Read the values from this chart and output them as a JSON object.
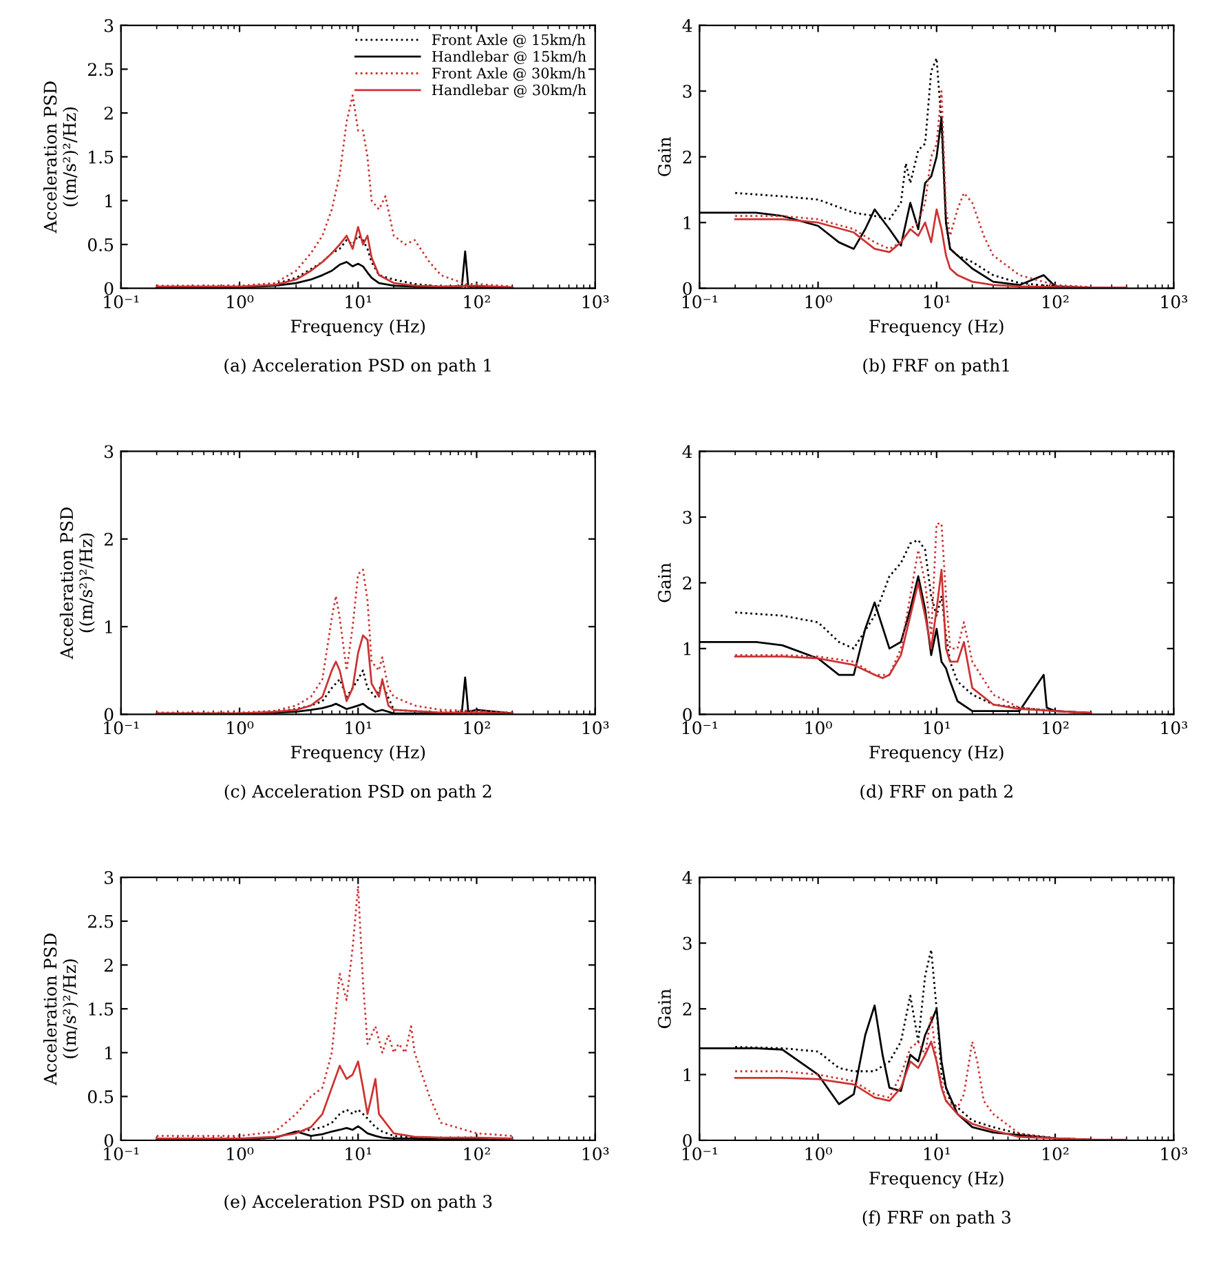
{
  "chart_data": [
    {
      "type": "line",
      "title": "(a) Acceleration PSD on path 1",
      "xlabel": "Frequency (Hz)",
      "ylabel": "Acceleration PSD\n((m/s²)²/Hz)",
      "log": "x",
      "xlim": [
        0.1,
        1000
      ],
      "xticks": [
        {
          "value": 0.1,
          "label": "10⁻¹"
        },
        {
          "value": 1,
          "label": "10⁰"
        },
        {
          "value": 10,
          "label": "10¹"
        },
        {
          "value": 100,
          "label": "10²"
        },
        {
          "value": 1000,
          "label": "10³"
        }
      ],
      "ylim": [
        0,
        3
      ],
      "yticks": [
        0,
        0.5,
        1,
        1.5,
        2,
        2.5,
        3
      ],
      "grid": false,
      "legend": "top right",
      "series": [
        {
          "name": "Front Axle @ 15km/h",
          "color": "#000000",
          "line_style": "dotted",
          "x": [
            0.2,
            1,
            2,
            3,
            4,
            5,
            6,
            7,
            8,
            9,
            10,
            11,
            12,
            13,
            15,
            20,
            30,
            50,
            80,
            100,
            200
          ],
          "values": [
            0.02,
            0.02,
            0.05,
            0.12,
            0.22,
            0.3,
            0.4,
            0.45,
            0.55,
            0.5,
            0.6,
            0.55,
            0.45,
            0.3,
            0.15,
            0.1,
            0.05,
            0.02,
            0.03,
            0.02,
            0.01
          ]
        },
        {
          "name": "Handlebar @ 15km/h",
          "color": "#000000",
          "line_style": "solid",
          "x": [
            0.2,
            1,
            2,
            3,
            4,
            5,
            6,
            7,
            8,
            9,
            10,
            11,
            12,
            13,
            15,
            20,
            30,
            50,
            75,
            80,
            85,
            100,
            200
          ],
          "values": [
            0.01,
            0.01,
            0.03,
            0.06,
            0.1,
            0.15,
            0.2,
            0.27,
            0.3,
            0.25,
            0.28,
            0.25,
            0.18,
            0.12,
            0.06,
            0.03,
            0.02,
            0.01,
            0.02,
            0.42,
            0.02,
            0.02,
            0.01
          ]
        },
        {
          "name": "Front Axle @ 30km/h",
          "color": "#cc3333",
          "line_style": "dotted",
          "x": [
            0.2,
            1,
            2,
            3,
            4,
            5,
            6,
            7,
            8,
            9,
            10,
            11,
            12,
            13,
            15,
            17,
            20,
            25,
            30,
            40,
            50,
            80,
            100,
            200
          ],
          "values": [
            0.03,
            0.03,
            0.06,
            0.2,
            0.4,
            0.6,
            0.9,
            1.3,
            1.9,
            2.2,
            1.8,
            1.8,
            1.5,
            1.0,
            0.9,
            1.05,
            0.6,
            0.5,
            0.55,
            0.3,
            0.15,
            0.05,
            0.05,
            0.02
          ]
        },
        {
          "name": "Handlebar @ 30km/h",
          "color": "#cc3333",
          "line_style": "solid",
          "x": [
            0.2,
            1,
            2,
            3,
            4,
            5,
            6,
            7,
            8,
            9,
            10,
            11,
            12,
            13,
            15,
            20,
            30,
            50,
            100,
            200
          ],
          "values": [
            0.02,
            0.02,
            0.04,
            0.1,
            0.2,
            0.3,
            0.4,
            0.5,
            0.6,
            0.45,
            0.7,
            0.5,
            0.6,
            0.35,
            0.15,
            0.06,
            0.03,
            0.02,
            0.03,
            0.01
          ]
        }
      ]
    },
    {
      "type": "line",
      "title": "(b) FRF on path1",
      "xlabel": "Frequency (Hz)",
      "ylabel": "Gain",
      "log": "x",
      "xlim": [
        0.1,
        1000
      ],
      "xticks": [
        {
          "value": 0.1,
          "label": "10⁻¹"
        },
        {
          "value": 1,
          "label": "10⁰"
        },
        {
          "value": 10,
          "label": "10¹"
        },
        {
          "value": 100,
          "label": "10²"
        },
        {
          "value": 1000,
          "label": "10³"
        }
      ],
      "ylim": [
        0,
        4
      ],
      "yticks": [
        0,
        1,
        2,
        3,
        4
      ],
      "grid": false,
      "series": [
        {
          "color": "#000000",
          "line_style": "dotted",
          "x": [
            0.2,
            0.5,
            1,
            2,
            3,
            4,
            5,
            5.5,
            6,
            7,
            8,
            9,
            10,
            11,
            12,
            13,
            15,
            20,
            30,
            50,
            100,
            200
          ],
          "values": [
            1.45,
            1.4,
            1.35,
            1.15,
            1.1,
            1.05,
            1.3,
            1.9,
            1.6,
            2.1,
            2.2,
            3.3,
            3.5,
            2.5,
            1.0,
            0.6,
            0.5,
            0.4,
            0.2,
            0.08,
            0.03,
            0.01
          ]
        },
        {
          "color": "#000000",
          "line_style": "solid",
          "x": [
            0.1,
            0.3,
            0.5,
            1,
            1.5,
            2,
            2.5,
            3,
            4,
            5,
            6,
            7,
            8,
            9,
            10,
            11,
            12,
            13,
            15,
            20,
            30,
            50,
            80,
            100,
            200
          ],
          "values": [
            1.15,
            1.15,
            1.1,
            0.95,
            0.7,
            0.6,
            0.9,
            1.2,
            0.9,
            0.65,
            1.3,
            0.9,
            1.6,
            1.7,
            2.0,
            2.6,
            1.0,
            0.6,
            0.5,
            0.3,
            0.1,
            0.05,
            0.2,
            0.03,
            0.01
          ]
        },
        {
          "color": "#cc3333",
          "line_style": "dotted",
          "x": [
            0.2,
            0.5,
            1,
            2,
            3,
            4,
            5,
            6,
            7,
            8,
            9,
            10,
            11,
            12,
            13,
            15,
            17,
            20,
            25,
            30,
            50,
            100,
            200
          ],
          "values": [
            1.1,
            1.1,
            1.05,
            0.9,
            0.7,
            0.6,
            0.7,
            0.9,
            1.0,
            1.3,
            2.0,
            2.2,
            3.0,
            1.2,
            0.8,
            1.2,
            1.45,
            1.3,
            0.8,
            0.5,
            0.2,
            0.05,
            0.02
          ]
        },
        {
          "color": "#cc3333",
          "line_style": "solid",
          "x": [
            0.2,
            0.5,
            1,
            2,
            3,
            4,
            5,
            6,
            7,
            8,
            9,
            10,
            11,
            12,
            13,
            15,
            20,
            30,
            50,
            100,
            200,
            400
          ],
          "values": [
            1.05,
            1.05,
            1.0,
            0.85,
            0.6,
            0.55,
            0.7,
            0.9,
            0.8,
            1.0,
            0.7,
            1.2,
            0.9,
            0.5,
            0.3,
            0.2,
            0.1,
            0.05,
            0.03,
            0.02,
            0.01,
            0.01
          ]
        }
      ]
    },
    {
      "type": "line",
      "title": "(c) Acceleration PSD on path 2",
      "xlabel": "Frequency (Hz)",
      "ylabel": "Acceleration PSD\n((m/s²)²/Hz)",
      "log": "x",
      "xlim": [
        0.1,
        1000
      ],
      "xticks": [
        {
          "value": 0.1,
          "label": "10⁻¹"
        },
        {
          "value": 1,
          "label": "10⁰"
        },
        {
          "value": 10,
          "label": "10¹"
        },
        {
          "value": 100,
          "label": "10²"
        },
        {
          "value": 1000,
          "label": "10³"
        }
      ],
      "ylim": [
        0,
        3
      ],
      "yticks": [
        0,
        1,
        2,
        3
      ],
      "grid": false,
      "series": [
        {
          "color": "#000000",
          "line_style": "dotted",
          "x": [
            0.2,
            1,
            2,
            3,
            4,
            5,
            6,
            7,
            8,
            9,
            10,
            11,
            12,
            14,
            16,
            20,
            50,
            100,
            200
          ],
          "values": [
            0.01,
            0.01,
            0.03,
            0.06,
            0.1,
            0.15,
            0.3,
            0.4,
            0.2,
            0.3,
            0.4,
            0.5,
            0.3,
            0.2,
            0.35,
            0.05,
            0.02,
            0.03,
            0.01
          ]
        },
        {
          "color": "#000000",
          "line_style": "solid",
          "x": [
            0.2,
            1,
            2,
            3,
            4,
            5,
            6,
            6.5,
            7,
            8,
            9,
            10,
            11,
            12,
            14,
            16,
            20,
            50,
            75,
            80,
            85,
            100,
            200
          ],
          "values": [
            0.01,
            0.01,
            0.02,
            0.03,
            0.05,
            0.07,
            0.1,
            0.12,
            0.1,
            0.06,
            0.08,
            0.1,
            0.12,
            0.08,
            0.03,
            0.05,
            0.01,
            0.01,
            0.02,
            0.42,
            0.03,
            0.05,
            0.01
          ]
        },
        {
          "color": "#cc3333",
          "line_style": "dotted",
          "x": [
            0.2,
            1,
            2,
            3,
            4,
            5,
            6,
            6.5,
            7,
            8,
            9,
            10,
            11,
            12,
            13,
            15,
            16,
            18,
            20,
            30,
            50,
            100,
            200
          ],
          "values": [
            0.02,
            0.02,
            0.04,
            0.1,
            0.2,
            0.4,
            1.1,
            1.35,
            1.1,
            0.5,
            1.0,
            1.6,
            1.65,
            1.3,
            0.6,
            0.5,
            0.65,
            0.3,
            0.2,
            0.1,
            0.05,
            0.04,
            0.02
          ]
        },
        {
          "color": "#cc3333",
          "line_style": "solid",
          "x": [
            0.2,
            1,
            2,
            3,
            4,
            5,
            6,
            6.5,
            7,
            8,
            9,
            10,
            11,
            12,
            13,
            15,
            16,
            18,
            20,
            50,
            100,
            200
          ],
          "values": [
            0.01,
            0.01,
            0.03,
            0.05,
            0.1,
            0.2,
            0.5,
            0.6,
            0.5,
            0.15,
            0.3,
            0.7,
            0.9,
            0.85,
            0.35,
            0.2,
            0.4,
            0.1,
            0.05,
            0.02,
            0.02,
            0.01
          ]
        }
      ]
    },
    {
      "type": "line",
      "title": "(d) FRF on path 2",
      "xlabel": "Frequency (Hz)",
      "ylabel": "Gain",
      "log": "x",
      "xlim": [
        0.1,
        1000
      ],
      "xticks": [
        {
          "value": 0.1,
          "label": "10⁻¹"
        },
        {
          "value": 1,
          "label": "10⁰"
        },
        {
          "value": 10,
          "label": "10¹"
        },
        {
          "value": 100,
          "label": "10²"
        },
        {
          "value": 1000,
          "label": "10³"
        }
      ],
      "ylim": [
        0,
        4
      ],
      "yticks": [
        0,
        1,
        2,
        3,
        4
      ],
      "grid": false,
      "series": [
        {
          "color": "#000000",
          "line_style": "dotted",
          "x": [
            0.2,
            0.5,
            1,
            1.5,
            2,
            3,
            4,
            5,
            6,
            7,
            8,
            9,
            10,
            11,
            12,
            13,
            15,
            20,
            30,
            50,
            100,
            200
          ],
          "values": [
            1.55,
            1.5,
            1.4,
            1.1,
            1.0,
            1.5,
            2.1,
            2.3,
            2.6,
            2.65,
            2.5,
            1.8,
            1.5,
            1.8,
            1.2,
            0.8,
            0.5,
            0.3,
            0.15,
            0.1,
            0.05,
            0.02
          ]
        },
        {
          "color": "#000000",
          "line_style": "solid",
          "x": [
            0.1,
            0.3,
            0.5,
            1,
            1.5,
            2,
            2.5,
            3,
            4,
            5,
            6,
            7,
            8,
            9,
            10,
            11,
            12,
            13,
            15,
            20,
            50,
            80,
            85,
            100,
            200
          ],
          "values": [
            1.1,
            1.1,
            1.05,
            0.85,
            0.6,
            0.6,
            1.3,
            1.7,
            1.0,
            1.1,
            1.6,
            2.1,
            1.6,
            0.9,
            1.3,
            0.8,
            0.7,
            0.5,
            0.2,
            0.05,
            0.05,
            0.6,
            0.1,
            0.05,
            0.02
          ]
        },
        {
          "color": "#cc3333",
          "line_style": "dotted",
          "x": [
            0.2,
            0.5,
            1,
            2,
            3,
            4,
            5,
            6,
            7,
            8,
            9,
            10,
            11,
            12,
            13,
            15,
            17,
            20,
            30,
            50,
            100,
            200
          ],
          "values": [
            0.9,
            0.9,
            0.88,
            0.8,
            0.6,
            0.6,
            1.0,
            1.8,
            2.5,
            2.0,
            1.2,
            2.9,
            2.9,
            1.8,
            1.0,
            1.0,
            1.4,
            0.8,
            0.3,
            0.1,
            0.05,
            0.02
          ]
        },
        {
          "color": "#cc3333",
          "line_style": "solid",
          "x": [
            0.2,
            0.5,
            1,
            2,
            3,
            3.5,
            4,
            5,
            6,
            7,
            8,
            9,
            10,
            11,
            12,
            13,
            15,
            17,
            20,
            30,
            50,
            100,
            200
          ],
          "values": [
            0.88,
            0.88,
            0.85,
            0.75,
            0.6,
            0.55,
            0.6,
            0.9,
            1.5,
            2.0,
            1.5,
            1.0,
            1.6,
            2.2,
            1.0,
            0.8,
            0.8,
            1.1,
            0.4,
            0.15,
            0.08,
            0.05,
            0.02
          ]
        }
      ]
    },
    {
      "type": "line",
      "title": "(e) Acceleration PSD on path 3",
      "xlabel": null,
      "ylabel": "Acceleration PSD\n((m/s²)²/Hz)",
      "log": "x",
      "xlim": [
        0.1,
        1000
      ],
      "xticks": [
        {
          "value": 0.1,
          "label": "10⁻¹"
        },
        {
          "value": 1,
          "label": "10⁰"
        },
        {
          "value": 10,
          "label": "10¹"
        },
        {
          "value": 100,
          "label": "10²"
        },
        {
          "value": 1000,
          "label": "10³"
        }
      ],
      "ylim": [
        0,
        3
      ],
      "yticks": [
        0,
        0.5,
        1,
        1.5,
        2,
        2.5,
        3
      ],
      "grid": false,
      "series": [
        {
          "color": "#000000",
          "line_style": "dotted",
          "x": [
            0.2,
            1,
            2,
            3,
            4,
            5,
            6,
            7,
            8,
            9,
            10,
            11,
            12,
            14,
            16,
            20,
            30,
            50,
            100,
            200
          ],
          "values": [
            0.01,
            0.01,
            0.03,
            0.1,
            0.12,
            0.15,
            0.2,
            0.3,
            0.35,
            0.3,
            0.35,
            0.3,
            0.25,
            0.15,
            0.1,
            0.05,
            0.03,
            0.02,
            0.01,
            0.01
          ]
        },
        {
          "color": "#000000",
          "line_style": "solid",
          "x": [
            0.2,
            1,
            2,
            3,
            4,
            5,
            6,
            7,
            8,
            9,
            10,
            11,
            12,
            14,
            16,
            20,
            30,
            50,
            100,
            200
          ],
          "values": [
            0.01,
            0.01,
            0.03,
            0.1,
            0.05,
            0.07,
            0.1,
            0.12,
            0.14,
            0.12,
            0.16,
            0.12,
            0.08,
            0.05,
            0.03,
            0.02,
            0.02,
            0.01,
            0.02,
            0.01
          ]
        },
        {
          "color": "#cc3333",
          "line_style": "dotted",
          "x": [
            0.2,
            1,
            2,
            3,
            4,
            5,
            6,
            7,
            8,
            9,
            10,
            11,
            12,
            14,
            16,
            18,
            20,
            22,
            25,
            28,
            30,
            40,
            50,
            100,
            200
          ],
          "values": [
            0.05,
            0.05,
            0.1,
            0.3,
            0.5,
            0.6,
            1.0,
            1.9,
            1.6,
            2.2,
            2.9,
            1.8,
            1.1,
            1.3,
            1.0,
            1.2,
            1.0,
            1.1,
            1.0,
            1.3,
            1.0,
            0.5,
            0.2,
            0.08,
            0.05
          ]
        },
        {
          "color": "#cc3333",
          "line_style": "solid",
          "x": [
            0.2,
            1,
            2,
            3,
            4,
            5,
            6,
            7,
            8,
            9,
            10,
            11,
            12,
            13,
            14,
            15,
            20,
            30,
            50,
            100,
            200
          ],
          "values": [
            0.02,
            0.02,
            0.04,
            0.08,
            0.15,
            0.3,
            0.6,
            0.85,
            0.7,
            0.75,
            0.9,
            0.6,
            0.3,
            0.5,
            0.7,
            0.3,
            0.08,
            0.04,
            0.03,
            0.03,
            0.02
          ]
        }
      ]
    },
    {
      "type": "line",
      "title": "(f) FRF on path 3",
      "xlabel": "Frequency (Hz)",
      "ylabel": "Gain",
      "log": "x",
      "xlim": [
        0.1,
        1000
      ],
      "xticks": [
        {
          "value": 0.1,
          "label": "10⁻¹"
        },
        {
          "value": 1,
          "label": "10⁰"
        },
        {
          "value": 10,
          "label": "10¹"
        },
        {
          "value": 100,
          "label": "10²"
        },
        {
          "value": 1000,
          "label": "10³"
        }
      ],
      "ylim": [
        0,
        4
      ],
      "yticks": [
        0,
        1,
        2,
        3,
        4
      ],
      "grid": false,
      "series": [
        {
          "color": "#000000",
          "line_style": "dotted",
          "x": [
            0.2,
            0.5,
            1,
            1.5,
            2,
            3,
            4,
            5,
            6,
            7,
            8,
            9,
            10,
            11,
            12,
            13,
            15,
            20,
            30,
            50,
            100,
            200
          ],
          "values": [
            1.42,
            1.4,
            1.35,
            1.1,
            1.05,
            1.05,
            1.2,
            1.5,
            2.2,
            1.5,
            2.5,
            2.9,
            2.0,
            1.0,
            0.8,
            0.6,
            0.5,
            0.3,
            0.2,
            0.1,
            0.03,
            0.01
          ]
        },
        {
          "color": "#000000",
          "line_style": "solid",
          "x": [
            0.1,
            0.3,
            0.5,
            1,
            1.5,
            2,
            2.5,
            3,
            3.5,
            4,
            5,
            6,
            7,
            8,
            9,
            10,
            11,
            12,
            15,
            20,
            30,
            50,
            100,
            200
          ],
          "values": [
            1.4,
            1.4,
            1.38,
            1.0,
            0.55,
            0.7,
            1.6,
            2.05,
            1.3,
            0.8,
            0.75,
            1.3,
            1.2,
            1.6,
            1.8,
            2.0,
            1.2,
            0.8,
            0.4,
            0.2,
            0.12,
            0.08,
            0.03,
            0.01
          ]
        },
        {
          "color": "#cc3333",
          "line_style": "dotted",
          "x": [
            0.2,
            0.5,
            1,
            2,
            3,
            4,
            5,
            6,
            7,
            8,
            9,
            10,
            12,
            15,
            17,
            20,
            22,
            25,
            30,
            50,
            100,
            200
          ],
          "values": [
            1.05,
            1.05,
            1.0,
            0.9,
            0.7,
            0.65,
            1.0,
            1.4,
            1.5,
            1.3,
            1.9,
            1.2,
            0.6,
            0.5,
            0.7,
            1.5,
            1.2,
            0.6,
            0.4,
            0.1,
            0.03,
            0.01
          ]
        },
        {
          "color": "#cc3333",
          "line_style": "solid",
          "x": [
            0.2,
            0.5,
            1,
            2,
            3,
            4,
            5,
            6,
            7,
            8,
            9,
            10,
            11,
            12,
            15,
            20,
            30,
            50,
            100,
            200,
            400
          ],
          "values": [
            0.95,
            0.95,
            0.93,
            0.85,
            0.65,
            0.6,
            0.8,
            1.2,
            1.1,
            1.3,
            1.5,
            1.2,
            0.8,
            0.6,
            0.4,
            0.25,
            0.15,
            0.05,
            0.03,
            0.01,
            0.01
          ]
        }
      ]
    }
  ]
}
